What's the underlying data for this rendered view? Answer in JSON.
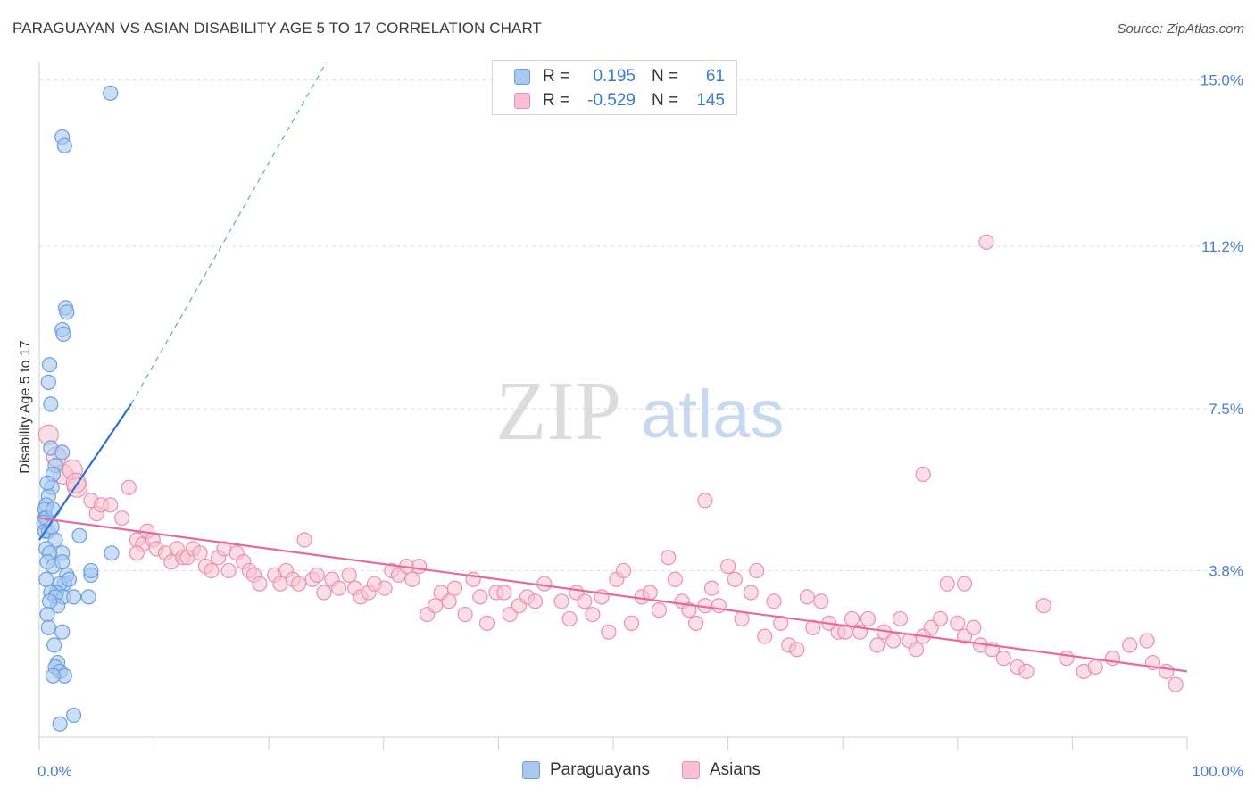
{
  "title": "PARAGUAYAN VS ASIAN DISABILITY AGE 5 TO 17 CORRELATION CHART",
  "source": "Source: ZipAtlas.com",
  "watermark": {
    "zip": "ZIP",
    "atlas": "atlas"
  },
  "colors": {
    "blue_fill": "#a9c8f0",
    "blue_stroke": "#6b9fe0",
    "blue_line": "#2e6fd0",
    "pink_fill": "#f6c2d2",
    "pink_stroke": "#ec90ad",
    "pink_line": "#e8699a",
    "grid": "#e0e0e0",
    "axis_text": "#4a7fd0"
  },
  "legend": {
    "rows": [
      {
        "r_label": "R =",
        "r_value": "0.195",
        "n_label": "N =",
        "n_value": "61"
      },
      {
        "r_label": "R =",
        "r_value": "-0.529",
        "n_label": "N =",
        "n_value": "145"
      }
    ]
  },
  "bottom_legend": [
    "Paraguayans",
    "Asians"
  ],
  "chart_data": {
    "type": "scatter",
    "title": "PARAGUAYAN VS ASIAN DISABILITY AGE 5 TO 17 CORRELATION CHART",
    "xlabel": "",
    "ylabel": "Disability Age 5 to 17",
    "xlim": [
      0,
      100
    ],
    "ylim": [
      0,
      15.4
    ],
    "y_ticks": [
      3.8,
      7.5,
      11.2,
      15.0
    ],
    "y_tick_labels": [
      "3.8%",
      "7.5%",
      "11.2%",
      "15.0%"
    ],
    "x_tick_labels": [
      "0.0%",
      "100.0%"
    ],
    "grid": true,
    "series": [
      {
        "name": "Paraguayans",
        "r": 0.195,
        "n": 61,
        "trend": {
          "x0": 0,
          "y0": 4.5,
          "x1": 8,
          "y1": 7.6,
          "dashed_to_x": 25,
          "dashed_to_y": 15.4
        },
        "points": [
          [
            6.2,
            14.7
          ],
          [
            2.0,
            13.7
          ],
          [
            2.2,
            13.5
          ],
          [
            2.3,
            9.8
          ],
          [
            2.4,
            9.7
          ],
          [
            2.0,
            9.3
          ],
          [
            2.1,
            9.2
          ],
          [
            0.9,
            8.5
          ],
          [
            0.8,
            8.1
          ],
          [
            1.0,
            7.6
          ],
          [
            1.0,
            6.6
          ],
          [
            1.4,
            6.2
          ],
          [
            2.0,
            6.5
          ],
          [
            1.2,
            6.0
          ],
          [
            1.1,
            5.7
          ],
          [
            0.8,
            5.5
          ],
          [
            0.7,
            5.8
          ],
          [
            0.6,
            5.3
          ],
          [
            0.5,
            5.2
          ],
          [
            0.5,
            5.0
          ],
          [
            0.6,
            5.0
          ],
          [
            0.4,
            4.9
          ],
          [
            1.2,
            5.2
          ],
          [
            0.5,
            4.7
          ],
          [
            0.8,
            4.7
          ],
          [
            3.5,
            4.6
          ],
          [
            6.3,
            4.2
          ],
          [
            1.4,
            4.5
          ],
          [
            2.0,
            4.2
          ],
          [
            0.6,
            4.3
          ],
          [
            0.9,
            4.2
          ],
          [
            0.7,
            4.0
          ],
          [
            1.2,
            3.9
          ],
          [
            4.5,
            3.7
          ],
          [
            4.5,
            3.8
          ],
          [
            0.6,
            3.6
          ],
          [
            2.4,
            3.7
          ],
          [
            2.2,
            3.5
          ],
          [
            1.8,
            3.5
          ],
          [
            1.5,
            3.3
          ],
          [
            2.1,
            3.2
          ],
          [
            1.0,
            3.3
          ],
          [
            1.4,
            3.2
          ],
          [
            4.3,
            3.2
          ],
          [
            1.6,
            3.0
          ],
          [
            3.0,
            3.2
          ],
          [
            0.9,
            3.1
          ],
          [
            0.7,
            2.8
          ],
          [
            0.8,
            2.5
          ],
          [
            2.0,
            2.4
          ],
          [
            1.3,
            2.1
          ],
          [
            1.6,
            1.7
          ],
          [
            1.4,
            1.6
          ],
          [
            1.8,
            1.5
          ],
          [
            2.2,
            1.4
          ],
          [
            1.2,
            1.4
          ],
          [
            3.0,
            0.5
          ],
          [
            1.8,
            0.3
          ],
          [
            2.0,
            4.0
          ],
          [
            2.6,
            3.6
          ],
          [
            1.1,
            4.8
          ]
        ]
      },
      {
        "name": "Asians",
        "r": -0.529,
        "n": 145,
        "trend": {
          "x0": 0,
          "y0": 5.0,
          "x1": 100,
          "y1": 1.5
        },
        "points": [
          [
            0.8,
            6.9
          ],
          [
            1.5,
            6.4
          ],
          [
            2.1,
            6.0
          ],
          [
            2.9,
            6.1
          ],
          [
            3.3,
            5.7
          ],
          [
            3.2,
            5.8
          ],
          [
            4.5,
            5.4
          ],
          [
            5.0,
            5.1
          ],
          [
            5.4,
            5.3
          ],
          [
            7.2,
            5.0
          ],
          [
            7.8,
            5.7
          ],
          [
            6.2,
            5.3
          ],
          [
            8.5,
            4.5
          ],
          [
            9.0,
            4.4
          ],
          [
            9.4,
            4.7
          ],
          [
            9.9,
            4.5
          ],
          [
            8.5,
            4.2
          ],
          [
            10.2,
            4.3
          ],
          [
            11.0,
            4.2
          ],
          [
            11.5,
            4.0
          ],
          [
            12.0,
            4.3
          ],
          [
            12.5,
            4.1
          ],
          [
            12.9,
            4.1
          ],
          [
            13.4,
            4.3
          ],
          [
            14.0,
            4.2
          ],
          [
            14.5,
            3.9
          ],
          [
            15.0,
            3.8
          ],
          [
            15.6,
            4.1
          ],
          [
            16.1,
            4.3
          ],
          [
            16.5,
            3.8
          ],
          [
            17.2,
            4.2
          ],
          [
            17.8,
            4.0
          ],
          [
            18.3,
            3.8
          ],
          [
            18.7,
            3.7
          ],
          [
            19.2,
            3.5
          ],
          [
            20.5,
            3.7
          ],
          [
            21.0,
            3.5
          ],
          [
            21.5,
            3.8
          ],
          [
            22.1,
            3.6
          ],
          [
            22.6,
            3.5
          ],
          [
            23.1,
            4.5
          ],
          [
            23.8,
            3.6
          ],
          [
            24.2,
            3.7
          ],
          [
            24.8,
            3.3
          ],
          [
            25.5,
            3.6
          ],
          [
            26.1,
            3.4
          ],
          [
            27.0,
            3.7
          ],
          [
            27.5,
            3.4
          ],
          [
            28.0,
            3.2
          ],
          [
            28.7,
            3.3
          ],
          [
            29.2,
            3.5
          ],
          [
            30.1,
            3.4
          ],
          [
            30.7,
            3.8
          ],
          [
            31.3,
            3.7
          ],
          [
            32.0,
            3.9
          ],
          [
            32.5,
            3.6
          ],
          [
            33.1,
            3.9
          ],
          [
            33.8,
            2.8
          ],
          [
            34.5,
            3.0
          ],
          [
            35.0,
            3.3
          ],
          [
            35.7,
            3.1
          ],
          [
            36.2,
            3.4
          ],
          [
            37.1,
            2.8
          ],
          [
            37.8,
            3.6
          ],
          [
            38.4,
            3.2
          ],
          [
            39.0,
            2.6
          ],
          [
            39.8,
            3.3
          ],
          [
            40.5,
            3.3
          ],
          [
            41.0,
            2.8
          ],
          [
            41.8,
            3.0
          ],
          [
            42.5,
            3.2
          ],
          [
            43.2,
            3.1
          ],
          [
            44.0,
            3.5
          ],
          [
            45.5,
            3.1
          ],
          [
            46.2,
            2.7
          ],
          [
            46.8,
            3.3
          ],
          [
            47.5,
            3.1
          ],
          [
            48.2,
            2.8
          ],
          [
            49.0,
            3.2
          ],
          [
            49.6,
            2.4
          ],
          [
            50.3,
            3.6
          ],
          [
            50.9,
            3.8
          ],
          [
            51.6,
            2.6
          ],
          [
            52.5,
            3.2
          ],
          [
            53.2,
            3.3
          ],
          [
            54.0,
            2.9
          ],
          [
            54.8,
            4.1
          ],
          [
            55.4,
            3.6
          ],
          [
            56.0,
            3.1
          ],
          [
            56.6,
            2.9
          ],
          [
            57.2,
            2.6
          ],
          [
            58.0,
            3.0
          ],
          [
            58.6,
            3.4
          ],
          [
            59.2,
            3.0
          ],
          [
            60.0,
            3.9
          ],
          [
            60.6,
            3.6
          ],
          [
            61.2,
            2.7
          ],
          [
            62.0,
            3.3
          ],
          [
            62.5,
            3.8
          ],
          [
            63.2,
            2.3
          ],
          [
            64.0,
            3.1
          ],
          [
            64.6,
            2.6
          ],
          [
            65.3,
            2.1
          ],
          [
            66.0,
            2.0
          ],
          [
            66.9,
            3.2
          ],
          [
            67.4,
            2.5
          ],
          [
            68.1,
            3.1
          ],
          [
            68.8,
            2.6
          ],
          [
            69.6,
            2.4
          ],
          [
            70.2,
            2.4
          ],
          [
            70.8,
            2.7
          ],
          [
            71.5,
            2.4
          ],
          [
            72.2,
            2.7
          ],
          [
            73.0,
            2.1
          ],
          [
            73.6,
            2.4
          ],
          [
            74.4,
            2.2
          ],
          [
            75.0,
            2.7
          ],
          [
            75.8,
            2.2
          ],
          [
            76.4,
            2.0
          ],
          [
            77.0,
            2.3
          ],
          [
            77.7,
            2.5
          ],
          [
            78.5,
            2.7
          ],
          [
            79.1,
            3.5
          ],
          [
            80.0,
            2.6
          ],
          [
            80.6,
            2.3
          ],
          [
            81.4,
            2.5
          ],
          [
            82.0,
            2.1
          ],
          [
            83.0,
            2.0
          ],
          [
            84.0,
            1.8
          ],
          [
            85.2,
            1.6
          ],
          [
            86.0,
            1.5
          ],
          [
            87.5,
            3.0
          ],
          [
            89.5,
            1.8
          ],
          [
            91.0,
            1.5
          ],
          [
            92.0,
            1.6
          ],
          [
            93.5,
            1.8
          ],
          [
            95.0,
            2.1
          ],
          [
            96.5,
            2.2
          ],
          [
            97.0,
            1.7
          ],
          [
            98.2,
            1.5
          ],
          [
            99.0,
            1.2
          ],
          [
            82.5,
            11.3
          ],
          [
            80.6,
            3.5
          ],
          [
            77.0,
            6.0
          ],
          [
            58.0,
            5.4
          ]
        ]
      }
    ]
  }
}
